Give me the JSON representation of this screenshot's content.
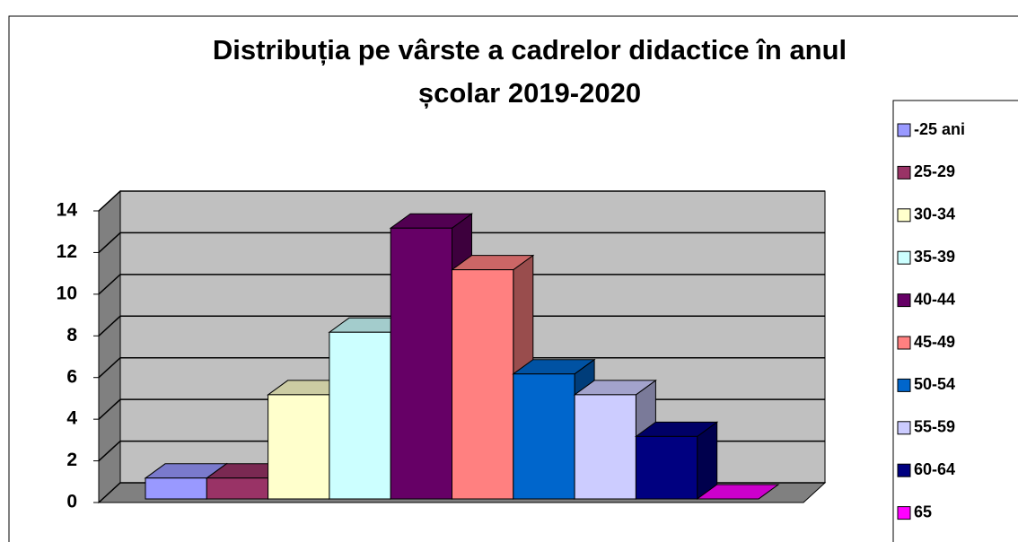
{
  "chart_data": {
    "type": "bar3d",
    "title": [
      "Distribuția pe vârste a cadrelor didactice în anul",
      "școlar 2019-2020"
    ],
    "categories": [
      "-25 ani",
      "25-29",
      "30-34",
      "35-39",
      "40-44",
      "45-49",
      "50-54",
      "55-59",
      "60-64",
      "65"
    ],
    "values": [
      1,
      1,
      5,
      8,
      13,
      11,
      6,
      5,
      3,
      0
    ],
    "colors": [
      "#9999ff",
      "#993366",
      "#ffffcc",
      "#ccffff",
      "#660066",
      "#ff8080",
      "#0066cc",
      "#ccccff",
      "#000080",
      "#ff00ff"
    ],
    "ylim": [
      0,
      14
    ],
    "yticks": [
      0,
      2,
      4,
      6,
      8,
      10,
      12,
      14
    ],
    "grid": true,
    "legend": "right"
  }
}
